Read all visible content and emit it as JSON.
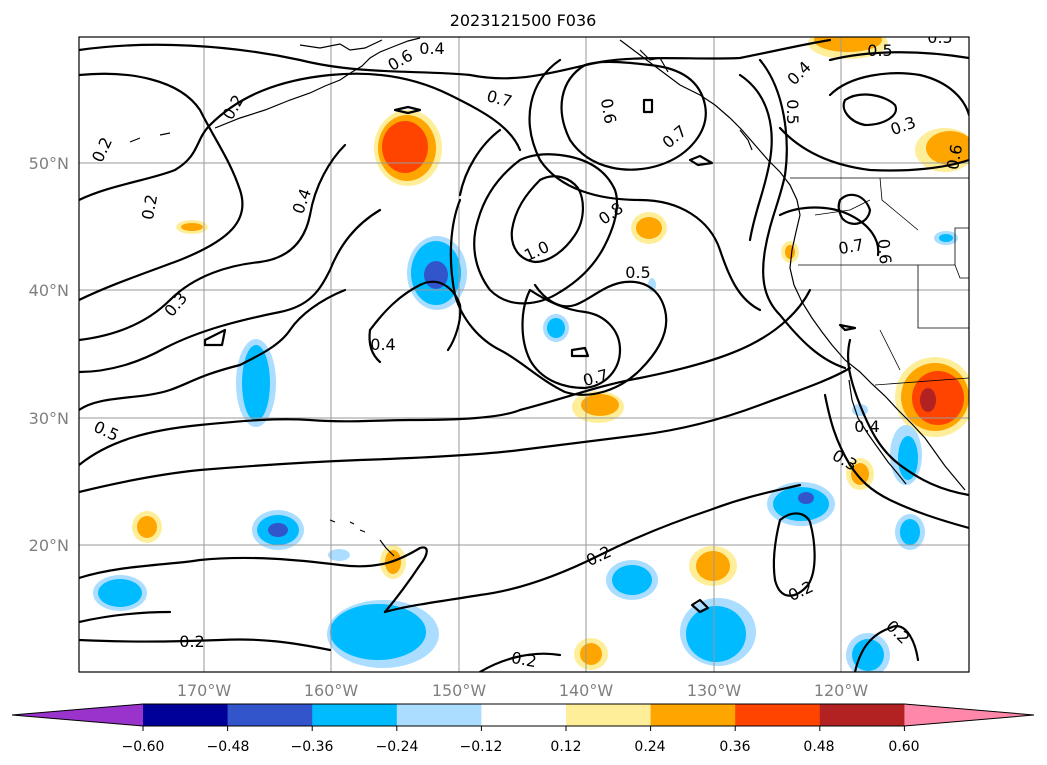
{
  "title": "2023121500 F036",
  "map": {
    "lat_labels": [
      "50°N",
      "40°N",
      "30°N",
      "20°N"
    ],
    "lon_labels": [
      "170°W",
      "160°W",
      "150°W",
      "140°W",
      "130°W",
      "120°W"
    ],
    "grid": true
  },
  "colorbar": {
    "ticks": [
      "−0.60",
      "−0.48",
      "−0.36",
      "−0.24",
      "−0.12",
      "0.12",
      "0.24",
      "0.36",
      "0.48",
      "0.60"
    ],
    "colors": [
      "#9933cc",
      "#000099",
      "#3355cc",
      "#00bbff",
      "#aaddff",
      "#ffffff",
      "#ffee99",
      "#ffa500",
      "#ff4400",
      "#b22222",
      "#ff88aa"
    ],
    "extend": "both"
  },
  "contour_labels": [
    {
      "id": "c1",
      "text": "0.4"
    },
    {
      "id": "c2",
      "text": "0.6"
    },
    {
      "id": "c3",
      "text": "0.7"
    },
    {
      "id": "c4",
      "text": "0.6"
    },
    {
      "id": "c5",
      "text": "0.2"
    },
    {
      "id": "c6",
      "text": "0.2"
    },
    {
      "id": "c7",
      "text": "0.4"
    },
    {
      "id": "c8",
      "text": "0.3"
    },
    {
      "id": "c9",
      "text": "0.5"
    },
    {
      "id": "c10",
      "text": "0.4"
    },
    {
      "id": "c11",
      "text": "1.0"
    },
    {
      "id": "c12",
      "text": "0.8"
    },
    {
      "id": "c13",
      "text": "0.7"
    },
    {
      "id": "c14",
      "text": "0.5"
    },
    {
      "id": "c15",
      "text": "0.7"
    },
    {
      "id": "c16",
      "text": "0.4"
    },
    {
      "id": "c17",
      "text": "0.5"
    },
    {
      "id": "c18",
      "text": "0.3"
    },
    {
      "id": "c19",
      "text": "0.5"
    },
    {
      "id": "c20",
      "text": "0.7"
    },
    {
      "id": "c21",
      "text": "0.6"
    },
    {
      "id": "c22",
      "text": "0.4"
    },
    {
      "id": "c23",
      "text": "0.3"
    },
    {
      "id": "c24",
      "text": "0.2"
    },
    {
      "id": "c25",
      "text": "0.2"
    },
    {
      "id": "c26",
      "text": "0.2"
    },
    {
      "id": "c27",
      "text": "0.2"
    },
    {
      "id": "c28",
      "text": "0.2"
    },
    {
      "id": "c29",
      "text": "0.2"
    },
    {
      "id": "c30",
      "text": "0.5"
    },
    {
      "id": "c31",
      "text": "0.6"
    }
  ]
}
